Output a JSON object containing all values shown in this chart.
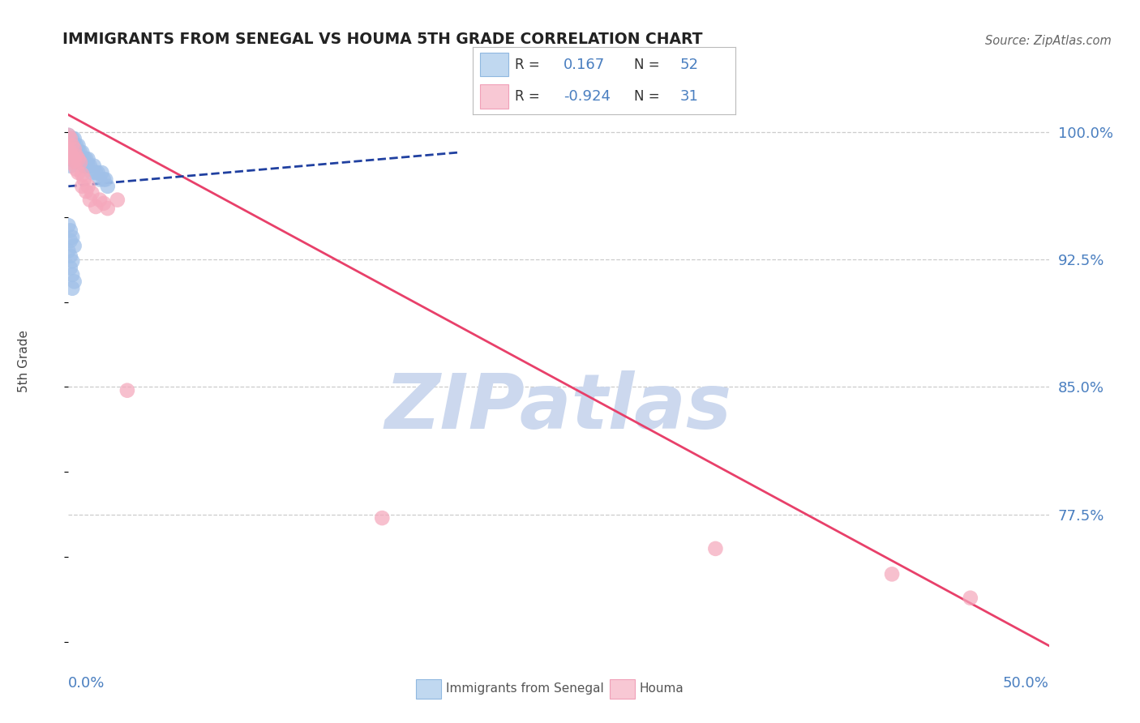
{
  "title": "IMMIGRANTS FROM SENEGAL VS HOUMA 5TH GRADE CORRELATION CHART",
  "source": "Source: ZipAtlas.com",
  "ylabel": "5th Grade",
  "ytick_labels": [
    "77.5%",
    "85.0%",
    "92.5%",
    "100.0%"
  ],
  "ytick_values": [
    0.775,
    0.85,
    0.925,
    1.0
  ],
  "xmin": 0.0,
  "xmax": 0.5,
  "ymin": 0.695,
  "ymax": 1.035,
  "legend_blue_r": "0.167",
  "legend_blue_n": "52",
  "legend_pink_r": "-0.924",
  "legend_pink_n": "31",
  "legend_label_blue": "Immigrants from Senegal",
  "legend_label_pink": "Houma",
  "blue_color": "#a0c0e8",
  "pink_color": "#f5a8bc",
  "blue_line_color": "#2040a0",
  "pink_line_color": "#e8406a",
  "watermark_text": "ZIPatlas",
  "watermark_color": "#ccd8ee",
  "blue_scatter_x": [
    0.0,
    0.001,
    0.001,
    0.001,
    0.001,
    0.001,
    0.002,
    0.002,
    0.002,
    0.002,
    0.003,
    0.003,
    0.003,
    0.003,
    0.004,
    0.004,
    0.004,
    0.005,
    0.005,
    0.005,
    0.006,
    0.006,
    0.007,
    0.007,
    0.008,
    0.008,
    0.009,
    0.009,
    0.01,
    0.01,
    0.011,
    0.012,
    0.013,
    0.014,
    0.015,
    0.016,
    0.017,
    0.018,
    0.019,
    0.02,
    0.0,
    0.001,
    0.002,
    0.0,
    0.001,
    0.002,
    0.001,
    0.002,
    0.003,
    0.002,
    0.001,
    0.003
  ],
  "blue_scatter_y": [
    0.998,
    0.996,
    0.992,
    0.988,
    0.984,
    0.98,
    0.996,
    0.992,
    0.988,
    0.984,
    0.996,
    0.992,
    0.988,
    0.984,
    0.992,
    0.988,
    0.984,
    0.992,
    0.988,
    0.984,
    0.988,
    0.984,
    0.988,
    0.984,
    0.984,
    0.98,
    0.984,
    0.98,
    0.984,
    0.98,
    0.98,
    0.976,
    0.98,
    0.976,
    0.976,
    0.972,
    0.976,
    0.972,
    0.972,
    0.968,
    0.945,
    0.942,
    0.938,
    0.93,
    0.927,
    0.924,
    0.92,
    0.916,
    0.912,
    0.908,
    0.936,
    0.933
  ],
  "pink_scatter_x": [
    0.0,
    0.0,
    0.001,
    0.001,
    0.001,
    0.002,
    0.002,
    0.003,
    0.003,
    0.004,
    0.004,
    0.005,
    0.005,
    0.006,
    0.007,
    0.007,
    0.008,
    0.009,
    0.01,
    0.011,
    0.012,
    0.014,
    0.016,
    0.018,
    0.02,
    0.025,
    0.03,
    0.16,
    0.33,
    0.42,
    0.46
  ],
  "pink_scatter_y": [
    0.998,
    0.99,
    0.996,
    0.988,
    0.982,
    0.992,
    0.985,
    0.99,
    0.983,
    0.986,
    0.978,
    0.984,
    0.976,
    0.982,
    0.975,
    0.968,
    0.972,
    0.965,
    0.968,
    0.96,
    0.964,
    0.956,
    0.96,
    0.958,
    0.955,
    0.96,
    0.848,
    0.773,
    0.755,
    0.74,
    0.726
  ],
  "blue_line_x0": 0.0,
  "blue_line_x1": 0.2,
  "blue_line_y0": 0.968,
  "blue_line_y1": 0.988,
  "pink_line_x0": 0.0,
  "pink_line_x1": 0.5,
  "pink_line_y0": 1.01,
  "pink_line_y1": 0.698,
  "title_color": "#222222",
  "axis_label_color": "#4a7fc0",
  "grid_color": "#cccccc",
  "source_color": "#666666"
}
